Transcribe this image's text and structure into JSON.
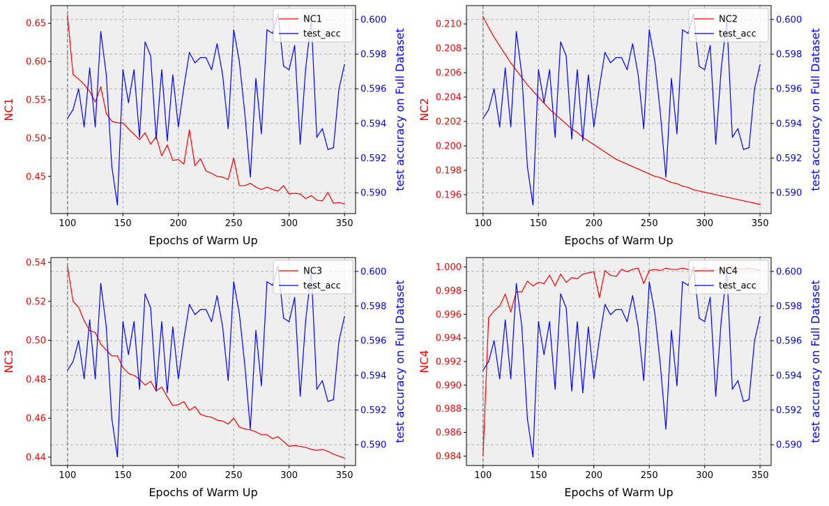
{
  "chart_data": [
    {
      "type": "line",
      "title": "",
      "xlabel": "Epochs of Warm Up",
      "ylabel": "NC1",
      "y2label": "test accuracy on Full Dataset",
      "xlim": [
        85,
        360
      ],
      "ylim": [
        0.4015,
        0.673
      ],
      "y2lim": [
        0.5888,
        0.6008
      ],
      "xticks": [
        100,
        150,
        200,
        250,
        300,
        350
      ],
      "yticks": [
        0.45,
        0.5,
        0.55,
        0.6,
        0.65
      ],
      "ytick_labels": [
        "0.45",
        "0.50",
        "0.55",
        "0.60",
        "0.65"
      ],
      "y2ticks": [
        0.59,
        0.592,
        0.594,
        0.596,
        0.598,
        0.6
      ],
      "y2tick_labels": [
        "0.590",
        "0.592",
        "0.594",
        "0.596",
        "0.598",
        "0.600"
      ],
      "x": [
        100,
        105,
        110,
        115,
        120,
        125,
        130,
        135,
        140,
        145,
        150,
        155,
        160,
        165,
        170,
        175,
        180,
        185,
        190,
        195,
        200,
        205,
        210,
        215,
        220,
        225,
        230,
        235,
        240,
        245,
        250,
        255,
        260,
        265,
        270,
        275,
        280,
        285,
        290,
        295,
        300,
        305,
        310,
        315,
        320,
        325,
        330,
        335,
        340,
        345,
        350
      ],
      "vline": 100,
      "legend": "upper-right",
      "grid": true,
      "series": [
        {
          "name": "NC1",
          "axis": "left",
          "color": "#ff0000",
          "values": [
            0.66,
            0.583,
            0.577,
            0.57,
            0.561,
            0.547,
            0.567,
            0.532,
            0.522,
            0.52,
            0.52,
            0.512,
            0.505,
            0.498,
            0.507,
            0.492,
            0.502,
            0.477,
            0.491,
            0.471,
            0.472,
            0.466,
            0.511,
            0.464,
            0.473,
            0.457,
            0.454,
            0.45,
            0.449,
            0.446,
            0.474,
            0.438,
            0.438,
            0.441,
            0.436,
            0.433,
            0.436,
            0.433,
            0.431,
            0.438,
            0.427,
            0.428,
            0.427,
            0.421,
            0.425,
            0.419,
            0.418,
            0.429,
            0.415,
            0.416,
            0.414
          ]
        },
        {
          "name": "test_acc",
          "axis": "right",
          "color": "#0000ff",
          "values": [
            0.5943,
            0.5948,
            0.596,
            0.5938,
            0.5972,
            0.5938,
            0.5993,
            0.5968,
            0.5915,
            0.5893,
            0.5971,
            0.5952,
            0.5971,
            0.5932,
            0.5987,
            0.5979,
            0.5931,
            0.5971,
            0.593,
            0.5968,
            0.5938,
            0.5961,
            0.5981,
            0.5975,
            0.5978,
            0.5978,
            0.5971,
            0.5986,
            0.5968,
            0.5937,
            0.5994,
            0.5976,
            0.5946,
            0.5909,
            0.5966,
            0.5934,
            0.5994,
            0.5992,
            0.6003,
            0.5973,
            0.5971,
            0.5985,
            0.5928,
            0.5972,
            0.6,
            0.5932,
            0.5937,
            0.5925,
            0.5926,
            0.596,
            0.5974
          ]
        }
      ]
    },
    {
      "type": "line",
      "title": "",
      "xlabel": "Epochs of Warm Up",
      "ylabel": "NC2",
      "y2label": "test accuracy on Full Dataset",
      "xlim": [
        85,
        360
      ],
      "ylim": [
        0.19445,
        0.2115
      ],
      "y2lim": [
        0.5888,
        0.6008
      ],
      "xticks": [
        100,
        150,
        200,
        250,
        300,
        350
      ],
      "yticks": [
        0.196,
        0.198,
        0.2,
        0.202,
        0.204,
        0.206,
        0.208,
        0.21
      ],
      "ytick_labels": [
        "0.196",
        "0.198",
        "0.200",
        "0.202",
        "0.204",
        "0.206",
        "0.208",
        "0.210"
      ],
      "y2ticks": [
        0.59,
        0.592,
        0.594,
        0.596,
        0.598,
        0.6
      ],
      "y2tick_labels": [
        "0.590",
        "0.592",
        "0.594",
        "0.596",
        "0.598",
        "0.600"
      ],
      "x": [
        100,
        105,
        110,
        115,
        120,
        125,
        130,
        135,
        140,
        145,
        150,
        155,
        160,
        165,
        170,
        175,
        180,
        185,
        190,
        195,
        200,
        205,
        210,
        215,
        220,
        225,
        230,
        235,
        240,
        245,
        250,
        255,
        260,
        265,
        270,
        275,
        280,
        285,
        290,
        295,
        300,
        305,
        310,
        315,
        320,
        325,
        330,
        335,
        340,
        345,
        350
      ],
      "vline": 100,
      "legend": "upper-right",
      "grid": true,
      "series": [
        {
          "name": "NC2",
          "axis": "left",
          "color": "#ff0000",
          "values": [
            0.2106,
            0.2097,
            0.2089,
            0.2082,
            0.2075,
            0.2068,
            0.2062,
            0.2056,
            0.205,
            0.2045,
            0.204,
            0.2035,
            0.203,
            0.2026,
            0.2022,
            0.2018,
            0.2014,
            0.2011,
            0.2007,
            0.2004,
            0.2001,
            0.1998,
            0.1995,
            0.1992,
            0.1989,
            0.1987,
            0.1985,
            0.1983,
            0.1981,
            0.1979,
            0.1977,
            0.1975,
            0.1974,
            0.1972,
            0.197,
            0.1969,
            0.1967,
            0.1966,
            0.1964,
            0.1963,
            0.1962,
            0.1961,
            0.196,
            0.1959,
            0.1958,
            0.1957,
            0.1956,
            0.1955,
            0.1954,
            0.1953,
            0.1952
          ]
        },
        {
          "name": "test_acc",
          "axis": "right",
          "color": "#0000ff",
          "values": [
            0.5943,
            0.5948,
            0.596,
            0.5938,
            0.5972,
            0.5938,
            0.5993,
            0.5968,
            0.5915,
            0.5893,
            0.5971,
            0.5952,
            0.5971,
            0.5932,
            0.5987,
            0.5979,
            0.5931,
            0.5971,
            0.593,
            0.5968,
            0.5938,
            0.5961,
            0.5981,
            0.5975,
            0.5978,
            0.5978,
            0.5971,
            0.5986,
            0.5968,
            0.5937,
            0.5994,
            0.5976,
            0.5946,
            0.5909,
            0.5966,
            0.5934,
            0.5994,
            0.5992,
            0.6003,
            0.5973,
            0.5971,
            0.5985,
            0.5928,
            0.5972,
            0.6,
            0.5932,
            0.5937,
            0.5925,
            0.5926,
            0.596,
            0.5974
          ]
        }
      ]
    },
    {
      "type": "line",
      "title": "",
      "xlabel": "Epochs of Warm Up",
      "ylabel": "NC3",
      "y2label": "test accuracy on Full Dataset",
      "xlim": [
        85,
        360
      ],
      "ylim": [
        0.4357,
        0.5425
      ],
      "y2lim": [
        0.5888,
        0.6008
      ],
      "xticks": [
        100,
        150,
        200,
        250,
        300,
        350
      ],
      "yticks": [
        0.44,
        0.46,
        0.48,
        0.5,
        0.52,
        0.54
      ],
      "ytick_labels": [
        "0.44",
        "0.46",
        "0.48",
        "0.50",
        "0.52",
        "0.54"
      ],
      "y2ticks": [
        0.59,
        0.592,
        0.594,
        0.596,
        0.598,
        0.6
      ],
      "y2tick_labels": [
        "0.590",
        "0.592",
        "0.594",
        "0.596",
        "0.598",
        "0.600"
      ],
      "x": [
        100,
        105,
        110,
        115,
        120,
        125,
        130,
        135,
        140,
        145,
        150,
        155,
        160,
        165,
        170,
        175,
        180,
        185,
        190,
        195,
        200,
        205,
        210,
        215,
        220,
        225,
        230,
        235,
        240,
        245,
        250,
        255,
        260,
        265,
        270,
        275,
        280,
        285,
        290,
        295,
        300,
        305,
        310,
        315,
        320,
        325,
        330,
        335,
        340,
        345,
        350
      ],
      "vline": 100,
      "legend": "upper-right",
      "grid": true,
      "series": [
        {
          "name": "NC3",
          "axis": "left",
          "color": "#ff0000",
          "values": [
            0.538,
            0.52,
            0.517,
            0.51,
            0.505,
            0.504,
            0.498,
            0.495,
            0.492,
            0.492,
            0.486,
            0.483,
            0.482,
            0.48,
            0.477,
            0.479,
            0.474,
            0.476,
            0.471,
            0.4665,
            0.467,
            0.4685,
            0.464,
            0.466,
            0.462,
            0.461,
            0.4605,
            0.459,
            0.4585,
            0.457,
            0.46,
            0.4555,
            0.4545,
            0.454,
            0.453,
            0.4515,
            0.4515,
            0.4495,
            0.4505,
            0.448,
            0.4455,
            0.446,
            0.4455,
            0.445,
            0.444,
            0.4435,
            0.444,
            0.443,
            0.4415,
            0.4405,
            0.4395
          ]
        },
        {
          "name": "test_acc",
          "axis": "right",
          "color": "#0000ff",
          "values": [
            0.5943,
            0.5948,
            0.596,
            0.5938,
            0.5972,
            0.5938,
            0.5993,
            0.5968,
            0.5915,
            0.5893,
            0.5971,
            0.5952,
            0.5971,
            0.5932,
            0.5987,
            0.5979,
            0.5931,
            0.5971,
            0.593,
            0.5968,
            0.5938,
            0.5961,
            0.5981,
            0.5975,
            0.5978,
            0.5978,
            0.5971,
            0.5986,
            0.5968,
            0.5937,
            0.5994,
            0.5976,
            0.5946,
            0.5909,
            0.5966,
            0.5934,
            0.5994,
            0.5992,
            0.6003,
            0.5973,
            0.5971,
            0.5985,
            0.5928,
            0.5972,
            0.6,
            0.5932,
            0.5937,
            0.5925,
            0.5926,
            0.596,
            0.5974
          ]
        }
      ]
    },
    {
      "type": "line",
      "title": "",
      "xlabel": "Epochs of Warm Up",
      "ylabel": "NC4",
      "y2label": "test accuracy on Full Dataset",
      "xlim": [
        85,
        360
      ],
      "ylim": [
        0.9832,
        1.0008
      ],
      "y2lim": [
        0.5888,
        0.6008
      ],
      "xticks": [
        100,
        150,
        200,
        250,
        300,
        350
      ],
      "yticks": [
        0.984,
        0.986,
        0.988,
        0.99,
        0.992,
        0.994,
        0.996,
        0.998,
        1.0
      ],
      "ytick_labels": [
        "0.984",
        "0.986",
        "0.988",
        "0.990",
        "0.992",
        "0.994",
        "0.996",
        "0.998",
        "1.000"
      ],
      "y2ticks": [
        0.59,
        0.592,
        0.594,
        0.596,
        0.598,
        0.6
      ],
      "y2tick_labels": [
        "0.590",
        "0.592",
        "0.594",
        "0.596",
        "0.598",
        "0.600"
      ],
      "x": [
        100,
        105,
        110,
        115,
        120,
        125,
        130,
        135,
        140,
        145,
        150,
        155,
        160,
        165,
        170,
        175,
        180,
        185,
        190,
        195,
        200,
        205,
        210,
        215,
        220,
        225,
        230,
        235,
        240,
        245,
        250,
        255,
        260,
        265,
        270,
        275,
        280,
        285,
        290,
        295,
        300,
        305,
        310,
        315,
        320,
        325,
        330,
        335,
        340,
        345,
        350
      ],
      "vline": 100,
      "legend": "upper-right",
      "grid": true,
      "series": [
        {
          "name": "NC4",
          "axis": "left",
          "color": "#ff0000",
          "values": [
            0.984,
            0.9957,
            0.9963,
            0.9967,
            0.9977,
            0.9962,
            0.9979,
            0.9979,
            0.9988,
            0.9984,
            0.9987,
            0.9986,
            0.9993,
            0.9984,
            0.9994,
            0.9987,
            0.9991,
            0.999,
            0.9994,
            0.9995,
            0.9996,
            0.9974,
            0.9997,
            0.9993,
            0.9992,
            0.9998,
            0.9996,
            0.9998,
            0.9999,
            0.9986,
            0.9997,
            0.9998,
            0.9997,
            0.9999,
            0.9998,
            0.9998,
            0.9999,
            0.9998,
            0.9996,
            0.9997,
            0.9999,
            0.9998,
            0.9997,
            0.9999,
            0.9999,
            0.9998,
            0.9999,
            0.9998,
            0.9999,
            0.9998,
            0.9997
          ]
        },
        {
          "name": "test_acc",
          "axis": "right",
          "color": "#0000ff",
          "values": [
            0.5943,
            0.5948,
            0.596,
            0.5938,
            0.5972,
            0.5938,
            0.5993,
            0.5968,
            0.5915,
            0.5893,
            0.5971,
            0.5952,
            0.5971,
            0.5932,
            0.5987,
            0.5979,
            0.5931,
            0.5971,
            0.593,
            0.5968,
            0.5938,
            0.5961,
            0.5981,
            0.5975,
            0.5978,
            0.5978,
            0.5971,
            0.5986,
            0.5968,
            0.5937,
            0.5994,
            0.5976,
            0.5946,
            0.5909,
            0.5966,
            0.5934,
            0.5994,
            0.5992,
            0.6003,
            0.5973,
            0.5971,
            0.5985,
            0.5928,
            0.5972,
            0.6,
            0.5932,
            0.5937,
            0.5925,
            0.5926,
            0.596,
            0.5974
          ]
        }
      ]
    }
  ]
}
